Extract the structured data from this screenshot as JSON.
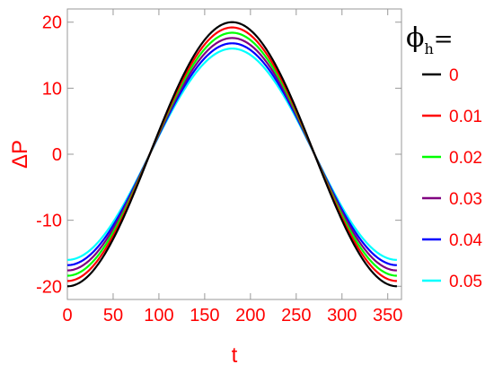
{
  "chart_data": {
    "type": "line",
    "xlabel": "t",
    "ylabel": "ΔP",
    "xlim": [
      0,
      365
    ],
    "ylim": [
      -22,
      22
    ],
    "x_ticks": [
      0,
      50,
      100,
      150,
      200,
      250,
      300,
      350
    ],
    "y_ticks": [
      -20,
      -10,
      0,
      10,
      20
    ],
    "x_tick_labels": [
      "0",
      "50",
      "100",
      "150",
      "200",
      "250",
      "300",
      "350"
    ],
    "y_tick_labels": [
      "-20",
      "-10",
      "0",
      "10",
      "20"
    ],
    "legend": {
      "title_symbol": "ϕ",
      "title_subscript": "h",
      "title_suffix": "=",
      "placement": "right"
    },
    "x_range": [
      0,
      360
    ],
    "curve_form": "ΔP = -A·cos(πt/180)",
    "series": [
      {
        "name": "0",
        "amplitude": 20,
        "color": "#000000"
      },
      {
        "name": "0.01",
        "amplitude": 19.2,
        "color": "#ff0000"
      },
      {
        "name": "0.02",
        "amplitude": 18.4,
        "color": "#00ff00"
      },
      {
        "name": "0.03",
        "amplitude": 17.6,
        "color": "#800080"
      },
      {
        "name": "0.04",
        "amplitude": 16.8,
        "color": "#0000ff"
      },
      {
        "name": "0.05",
        "amplitude": 16.0,
        "color": "#00ffff"
      }
    ]
  }
}
